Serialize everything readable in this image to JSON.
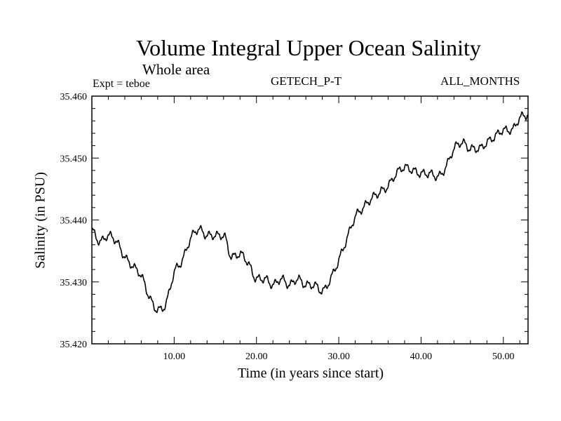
{
  "chart_data": {
    "type": "line",
    "title": "Volume Integral Upper Ocean Salinity",
    "subtitle": "Whole area",
    "experiment": "Expt = teboe",
    "dataset": "GETECH_P-T",
    "months": "ALL_MONTHS",
    "xlabel": "Time (in years since start)",
    "ylabel": "Salinity (in PSU)",
    "xlim": [
      0,
      53
    ],
    "ylim": [
      35.42,
      35.46
    ],
    "x_ticks": [
      10,
      20,
      30,
      40,
      50
    ],
    "x_tick_labels": [
      "10.00",
      "20.00",
      "30.00",
      "40.00",
      "50.00"
    ],
    "y_ticks": [
      35.42,
      35.43,
      35.44,
      35.45,
      35.46
    ],
    "y_tick_labels": [
      "35.420",
      "35.430",
      "35.440",
      "35.450",
      "35.460"
    ],
    "grid": false,
    "series": [
      {
        "name": "Salinity",
        "x": [
          0,
          1,
          2,
          3,
          4,
          5,
          6,
          7,
          8,
          9,
          10,
          11,
          12,
          13,
          14,
          15,
          16,
          17,
          18,
          19,
          20,
          21,
          22,
          23,
          24,
          25,
          26,
          27,
          28,
          29,
          30,
          31,
          32,
          33,
          34,
          35,
          36,
          37,
          38,
          39,
          40,
          41,
          42,
          43,
          44,
          45,
          46,
          47,
          48,
          49,
          50,
          51,
          52,
          53
        ],
        "values": [
          35.4385,
          35.4365,
          35.4375,
          35.4365,
          35.434,
          35.4325,
          35.431,
          35.4275,
          35.4255,
          35.4265,
          35.4315,
          35.4335,
          35.437,
          35.4385,
          35.4375,
          35.4375,
          35.4375,
          35.434,
          35.4345,
          35.433,
          35.4305,
          35.4305,
          35.4295,
          35.4305,
          35.4295,
          35.4305,
          35.4295,
          35.4295,
          35.4285,
          35.4305,
          35.4335,
          35.437,
          35.4405,
          35.442,
          35.4435,
          35.4445,
          35.4455,
          35.4475,
          35.4485,
          35.448,
          35.4475,
          35.4475,
          35.447,
          35.4485,
          35.4515,
          35.4525,
          35.4515,
          35.4515,
          35.4525,
          35.4535,
          35.4545,
          35.4545,
          35.4565,
          35.457
        ]
      }
    ]
  }
}
